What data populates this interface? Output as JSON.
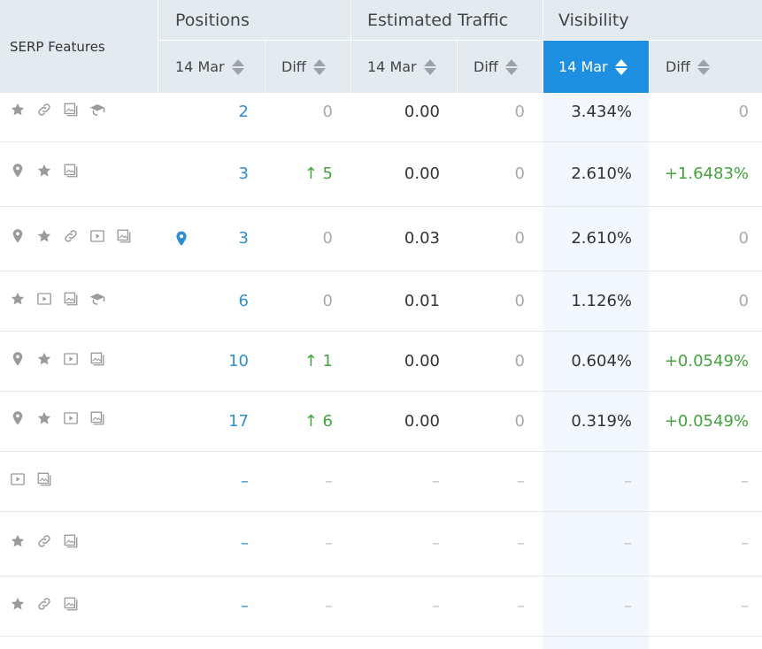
{
  "header": {
    "serp_features": "SERP Features",
    "positions": "Positions",
    "traffic": "Estimated Traffic",
    "visibility": "Visibility",
    "sub": {
      "pos_date": "14 Mar",
      "pos_diff": "Diff",
      "traffic_date": "14 Mar",
      "traffic_diff": "Diff",
      "vis_date": "14 Mar",
      "vis_diff": "Diff"
    }
  },
  "colors": {
    "accent": "#1e8fe1",
    "position": "#2d8fcf",
    "positive": "#44a33e",
    "header_bg": "#e3ebf1"
  },
  "rows": [
    {
      "features": [
        "star-icon",
        "link-icon",
        "image-icon",
        "graduation-cap-icon"
      ],
      "local": false,
      "position": "2",
      "pos_diff": "0",
      "traffic": "0.00",
      "traffic_diff": "0",
      "visibility": "3.434%",
      "vis_diff": "0"
    },
    {
      "features": [
        "pin-icon",
        "star-icon",
        "image-icon"
      ],
      "local": false,
      "position": "3",
      "pos_diff": "↑ 5",
      "traffic": "0.00",
      "traffic_diff": "0",
      "visibility": "2.610%",
      "vis_diff": "+1.6483%"
    },
    {
      "features": [
        "pin-icon",
        "star-icon",
        "link-icon",
        "video-icon",
        "image-icon"
      ],
      "local": true,
      "position": "3",
      "pos_diff": "0",
      "traffic": "0.03",
      "traffic_diff": "0",
      "visibility": "2.610%",
      "vis_diff": "0"
    },
    {
      "features": [
        "star-icon",
        "video-icon",
        "image-icon",
        "graduation-cap-icon"
      ],
      "local": false,
      "position": "6",
      "pos_diff": "0",
      "traffic": "0.01",
      "traffic_diff": "0",
      "visibility": "1.126%",
      "vis_diff": "0"
    },
    {
      "features": [
        "pin-icon",
        "star-icon",
        "video-icon",
        "image-icon"
      ],
      "local": false,
      "position": "10",
      "pos_diff": "↑ 1",
      "traffic": "0.00",
      "traffic_diff": "0",
      "visibility": "0.604%",
      "vis_diff": "+0.0549%"
    },
    {
      "features": [
        "pin-icon",
        "star-icon",
        "video-icon",
        "image-icon"
      ],
      "local": false,
      "position": "17",
      "pos_diff": "↑ 6",
      "traffic": "0.00",
      "traffic_diff": "0",
      "visibility": "0.319%",
      "vis_diff": "+0.0549%"
    },
    {
      "features": [
        "video-icon",
        "image-icon"
      ],
      "local": false,
      "position": "–",
      "pos_diff": "–",
      "traffic": "–",
      "traffic_diff": "–",
      "visibility": "–",
      "vis_diff": "–"
    },
    {
      "features": [
        "star-icon",
        "link-icon",
        "image-icon"
      ],
      "local": false,
      "position": "–",
      "pos_diff": "–",
      "traffic": "–",
      "traffic_diff": "–",
      "visibility": "–",
      "vis_diff": "–"
    },
    {
      "features": [
        "star-icon",
        "link-icon",
        "image-icon"
      ],
      "local": false,
      "position": "–",
      "pos_diff": "–",
      "traffic": "–",
      "traffic_diff": "–",
      "visibility": "–",
      "vis_diff": "–"
    }
  ]
}
